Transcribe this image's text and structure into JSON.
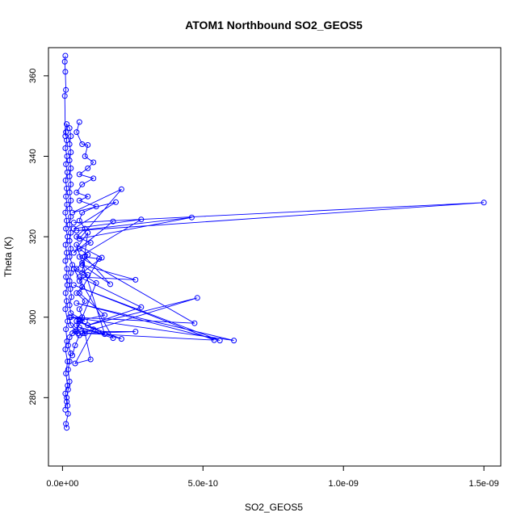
{
  "chart_data": {
    "type": "line",
    "title": "ATOM1 Northbound SO2_GEOS5",
    "xlabel": "SO2_GEOS5",
    "ylabel": "Theta (K)",
    "xlim": [
      -5e-11,
      1.56e-09
    ],
    "ylim": [
      263,
      367
    ],
    "x_ticks": [
      0,
      5e-10,
      1e-09,
      1.5e-09
    ],
    "x_tick_labels": [
      "0.0e+00",
      "5.0e-10",
      "1.0e-09",
      "1.5e-09"
    ],
    "y_ticks": [
      280,
      300,
      320,
      340,
      360
    ],
    "y_tick_labels": [
      "280",
      "300",
      "320",
      "340",
      "360"
    ],
    "grid": false,
    "series_color": "#0000ff",
    "series": [
      {
        "points": [
          [
            1.5e-11,
            272.5
          ],
          [
            1.2e-11,
            273.5
          ],
          [
            2e-11,
            276
          ],
          [
            1.8e-11,
            278
          ],
          [
            1.5e-11,
            280
          ],
          [
            2e-11,
            282
          ],
          [
            2.5e-11,
            284
          ],
          [
            2e-11,
            287
          ],
          [
            2.5e-11,
            289
          ],
          [
            3e-11,
            291
          ],
          [
            2e-11,
            293
          ],
          [
            2.5e-11,
            295
          ],
          [
            3.5e-11,
            296
          ],
          [
            4.5e-11,
            296.5
          ],
          [
            5.5e-11,
            296
          ],
          [
            3e-11,
            298
          ],
          [
            2.5e-11,
            300
          ],
          [
            6e-11,
            299.5
          ],
          [
            8e-11,
            299
          ],
          [
            3e-11,
            301
          ],
          [
            2.5e-11,
            303
          ],
          [
            3.2e-11,
            305
          ],
          [
            2.8e-11,
            307
          ],
          [
            2.5e-11,
            309
          ],
          [
            3e-11,
            311
          ],
          [
            3.5e-11,
            313
          ],
          [
            2.5e-11,
            315
          ],
          [
            3e-11,
            317
          ],
          [
            2.5e-11,
            319
          ],
          [
            3e-11,
            321
          ],
          [
            2.5e-11,
            323
          ],
          [
            3e-11,
            325
          ],
          [
            2.5e-11,
            327
          ],
          [
            3e-11,
            329
          ],
          [
            2.5e-11,
            331
          ],
          [
            3e-11,
            333
          ],
          [
            2.5e-11,
            335
          ],
          [
            3e-11,
            337
          ],
          [
            2.5e-11,
            339
          ],
          [
            3e-11,
            341
          ],
          [
            2.5e-11,
            343
          ],
          [
            3e-11,
            345
          ],
          [
            2.5e-11,
            347
          ],
          [
            1.5e-11,
            348
          ],
          [
            1e-11,
            345
          ],
          [
            8e-12,
            355
          ],
          [
            1.2e-11,
            356.5
          ],
          [
            1e-11,
            361
          ],
          [
            8e-12,
            363.5
          ],
          [
            1e-11,
            365
          ]
        ]
      },
      {
        "points": [
          [
            4e-11,
            323.5
          ],
          [
            1.5e-09,
            328.5
          ],
          [
            5e-11,
            321.5
          ],
          [
            4.6e-10,
            324.8
          ],
          [
            6e-11,
            319.5
          ],
          [
            2.1e-10,
            331.8
          ],
          [
            3.5e-11,
            326
          ],
          [
            1.9e-10,
            328.6
          ],
          [
            4e-11,
            322
          ],
          [
            2.8e-10,
            324.3
          ],
          [
            6e-11,
            315
          ],
          [
            4.7e-10,
            298.5
          ],
          [
            3e-11,
            300
          ],
          [
            6.1e-10,
            294.2
          ],
          [
            5e-11,
            303.5
          ],
          [
            5.6e-10,
            294.2
          ],
          [
            4e-11,
            308
          ],
          [
            5.4e-10,
            294.3
          ],
          [
            7e-11,
            296
          ],
          [
            4.8e-10,
            304.8
          ],
          [
            9e-11,
            298
          ],
          [
            2.8e-10,
            302.5
          ],
          [
            6e-11,
            310
          ],
          [
            2.6e-10,
            309.3
          ],
          [
            7e-11,
            313
          ],
          [
            1.7e-10,
            308.2
          ],
          [
            8e-11,
            315
          ],
          [
            1.3e-10,
            314.5
          ],
          [
            6e-11,
            306
          ],
          [
            1.5e-10,
            300.5
          ],
          [
            5e-11,
            299
          ],
          [
            2.1e-10,
            294.6
          ],
          [
            6e-11,
            297.5
          ],
          [
            1.8e-10,
            294.8
          ],
          [
            4e-11,
            312
          ],
          [
            1.2e-10,
            308.5
          ],
          [
            5e-11,
            296.5
          ],
          [
            2.6e-10,
            296.4
          ],
          [
            8e-11,
            296
          ],
          [
            1e-10,
            289.5
          ],
          [
            4.5e-11,
            288.5
          ],
          [
            1.1e-10,
            297
          ],
          [
            6e-11,
            299
          ],
          [
            1.5e-10,
            295.8
          ],
          [
            5e-11,
            318
          ],
          [
            1.4e-10,
            314.8
          ],
          [
            7e-11,
            311
          ],
          [
            9e-11,
            321
          ],
          [
            4e-11,
            316
          ],
          [
            1.8e-10,
            323.8
          ]
        ]
      },
      {
        "points": [
          [
            6e-11,
            348.5
          ],
          [
            5e-11,
            346
          ],
          [
            7e-11,
            343
          ],
          [
            9e-11,
            342.8
          ],
          [
            8e-11,
            340
          ],
          [
            1.1e-10,
            338.5
          ],
          [
            9e-11,
            337
          ],
          [
            6e-11,
            335.5
          ],
          [
            1.1e-10,
            334.5
          ],
          [
            7e-11,
            333
          ],
          [
            5e-11,
            331
          ],
          [
            9e-11,
            330
          ],
          [
            6e-11,
            329
          ],
          [
            1.2e-10,
            327.5
          ],
          [
            7e-11,
            326
          ],
          [
            6e-11,
            324
          ],
          [
            8e-11,
            322
          ],
          [
            5e-11,
            320
          ],
          [
            1e-10,
            318.5
          ],
          [
            6e-11,
            317
          ],
          [
            9e-11,
            315.5
          ],
          [
            7e-11,
            313.5
          ],
          [
            5e-11,
            312
          ],
          [
            9e-11,
            310.5
          ],
          [
            6e-11,
            309
          ],
          [
            7e-11,
            307.5
          ],
          [
            5e-11,
            306
          ],
          [
            8e-11,
            304
          ],
          [
            6e-11,
            302
          ],
          [
            7e-11,
            300
          ],
          [
            5e-11,
            298
          ],
          [
            8e-11,
            296.5
          ],
          [
            6e-11,
            295.5
          ],
          [
            4.5e-11,
            293
          ],
          [
            3.5e-11,
            290.5
          ]
        ]
      },
      {
        "points": [
          [
            1e-11,
            277
          ],
          [
            1.5e-11,
            279
          ],
          [
            1e-11,
            281
          ],
          [
            1.8e-11,
            283
          ],
          [
            1.2e-11,
            286
          ],
          [
            1.8e-11,
            289
          ],
          [
            1e-11,
            292
          ],
          [
            1.6e-11,
            294
          ],
          [
            1.2e-11,
            297
          ],
          [
            1.8e-11,
            299
          ],
          [
            1e-11,
            302
          ],
          [
            1.5e-11,
            304
          ],
          [
            1.1e-11,
            306
          ],
          [
            1.7e-11,
            308
          ],
          [
            1.2e-11,
            310
          ],
          [
            1.6e-11,
            312
          ],
          [
            1e-11,
            314
          ],
          [
            1.5e-11,
            316
          ],
          [
            1.1e-11,
            318
          ],
          [
            1.8e-11,
            320
          ],
          [
            1.2e-11,
            322
          ],
          [
            1.5e-11,
            324
          ],
          [
            1e-11,
            326
          ],
          [
            1.6e-11,
            328
          ],
          [
            1.2e-11,
            330
          ],
          [
            1.5e-11,
            332
          ],
          [
            1.1e-11,
            334
          ],
          [
            1.7e-11,
            336
          ],
          [
            1.2e-11,
            338
          ],
          [
            1.6e-11,
            340
          ],
          [
            1e-11,
            342
          ],
          [
            1.5e-11,
            344
          ],
          [
            1.2e-11,
            346
          ]
        ]
      }
    ]
  }
}
